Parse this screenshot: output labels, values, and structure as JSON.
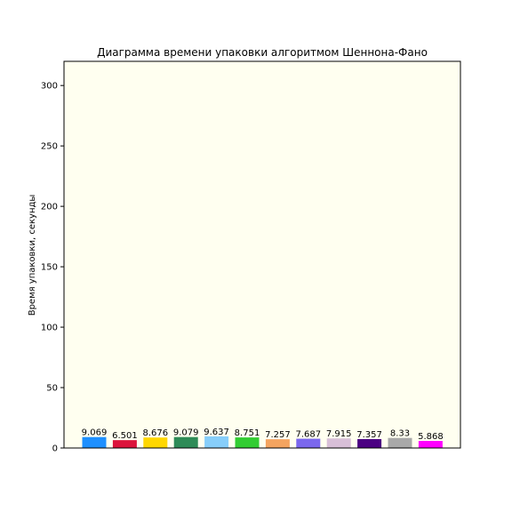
{
  "chart_data": {
    "type": "bar",
    "title": "Диаграмма времени упаковки алгоритмом Шеннона-Фано",
    "xlabel": "",
    "ylabel": "Время упаковки, секунды",
    "ylim": [
      0,
      320
    ],
    "yticks": [
      0,
      50,
      100,
      150,
      200,
      250,
      300
    ],
    "grid": false,
    "background": "#fffff0",
    "values": [
      9.069,
      6.501,
      8.676,
      9.079,
      9.637,
      8.751,
      7.257,
      7.687,
      7.915,
      7.357,
      8.33,
      5.868
    ],
    "value_labels": [
      "9.069",
      "6.501",
      "8.676",
      "9.079",
      "9.637",
      "8.751",
      "7.257",
      "7.687",
      "7.915",
      "7.357",
      "8.33",
      "5.868"
    ],
    "colors": [
      "#1e90ff",
      "#dc143c",
      "#ffd700",
      "#2e8b57",
      "#87cefa",
      "#32cd32",
      "#f4a460",
      "#7b68ee",
      "#d8bfd8",
      "#4b0082",
      "#a9a9a9",
      "#ff00ff"
    ]
  }
}
